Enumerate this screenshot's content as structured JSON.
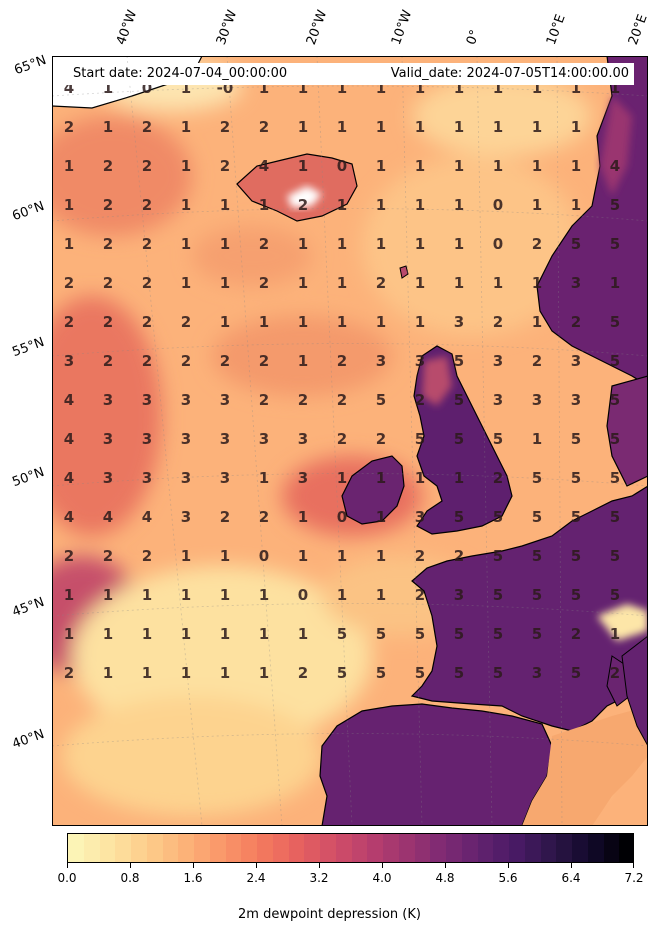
{
  "header": {
    "start_date": "Start date: 2024-07-04_00:00:00",
    "valid_date": "Valid_date: 2024-07-05T14:00:00.00"
  },
  "longitude_labels": [
    "40°W",
    "30°W",
    "20°W",
    "10°W",
    "0°",
    "10°E",
    "20°E"
  ],
  "latitude_labels": [
    "65°N",
    "60°N",
    "55°N",
    "50°N",
    "45°N",
    "40°N"
  ],
  "colorbar": {
    "title": "2m dewpoint depression (K)",
    "colormap": "magma_r",
    "min": 0.0,
    "max": 7.2,
    "tick_labels": [
      "0.0",
      "0.8",
      "1.6",
      "2.4",
      "3.2",
      "4.0",
      "4.8",
      "5.6",
      "6.4",
      "7.2"
    ],
    "colors": [
      "#fcf4b6",
      "#fde2a0",
      "#fdcc8a",
      "#fcb278",
      "#fa9669",
      "#f47b5e",
      "#e7625f",
      "#d24f67",
      "#b93f6e",
      "#9c3470",
      "#7e2a73",
      "#62226f",
      "#481a64",
      "#2c1548",
      "#12092a",
      "#000004"
    ]
  },
  "grid_values": [
    [
      "4",
      "1",
      "0",
      "1",
      "-0",
      "1",
      "1",
      "1",
      "1",
      "1",
      "1",
      "1",
      "1",
      "1",
      "1"
    ],
    [
      "2",
      "1",
      "2",
      "1",
      "2",
      "2",
      "1",
      "1",
      "1",
      "1",
      "1",
      "1",
      "1",
      "1",
      ""
    ],
    [
      "1",
      "2",
      "2",
      "1",
      "2",
      "4",
      "1",
      "0",
      "1",
      "1",
      "1",
      "1",
      "1",
      "1",
      "4"
    ],
    [
      "1",
      "2",
      "2",
      "1",
      "1",
      "1",
      "2",
      "1",
      "1",
      "1",
      "1",
      "0",
      "1",
      "1",
      "5"
    ],
    [
      "1",
      "2",
      "2",
      "1",
      "1",
      "2",
      "1",
      "1",
      "1",
      "1",
      "1",
      "0",
      "2",
      "5",
      "5"
    ],
    [
      "2",
      "2",
      "2",
      "1",
      "1",
      "2",
      "1",
      "1",
      "2",
      "1",
      "1",
      "1",
      "1",
      "3",
      "1"
    ],
    [
      "2",
      "2",
      "2",
      "2",
      "1",
      "1",
      "1",
      "1",
      "1",
      "1",
      "3",
      "2",
      "1",
      "2",
      "5"
    ],
    [
      "3",
      "2",
      "2",
      "2",
      "2",
      "2",
      "1",
      "2",
      "3",
      "3",
      "5",
      "3",
      "2",
      "3",
      "5"
    ],
    [
      "4",
      "3",
      "3",
      "3",
      "3",
      "2",
      "2",
      "2",
      "5",
      "2",
      "5",
      "3",
      "3",
      "3",
      "5"
    ],
    [
      "4",
      "3",
      "3",
      "3",
      "3",
      "3",
      "3",
      "2",
      "2",
      "5",
      "5",
      "5",
      "1",
      "5",
      "5"
    ],
    [
      "4",
      "3",
      "3",
      "3",
      "3",
      "1",
      "3",
      "1",
      "1",
      "1",
      "1",
      "2",
      "5",
      "5",
      "5"
    ],
    [
      "4",
      "4",
      "4",
      "3",
      "2",
      "2",
      "1",
      "0",
      "1",
      "3",
      "5",
      "5",
      "5",
      "5",
      "5"
    ],
    [
      "2",
      "2",
      "2",
      "1",
      "1",
      "0",
      "1",
      "1",
      "1",
      "2",
      "2",
      "5",
      "5",
      "5",
      "5"
    ],
    [
      "1",
      "1",
      "1",
      "1",
      "1",
      "1",
      "0",
      "1",
      "1",
      "2",
      "3",
      "5",
      "5",
      "5",
      "5"
    ],
    [
      "1",
      "1",
      "1",
      "1",
      "1",
      "1",
      "1",
      "5",
      "5",
      "5",
      "5",
      "5",
      "5",
      "2",
      "1"
    ],
    [
      "2",
      "1",
      "1",
      "1",
      "1",
      "1",
      "2",
      "5",
      "5",
      "5",
      "5",
      "5",
      "3",
      "5",
      "2"
    ]
  ]
}
